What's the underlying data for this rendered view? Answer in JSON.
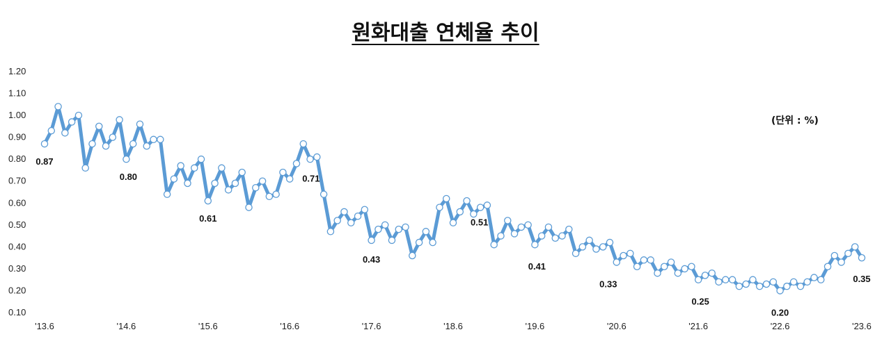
{
  "chart_data": {
    "type": "line",
    "title": "원화대출 연체율 추이",
    "unit_note": "(단위 : %)",
    "ylim": [
      0.1,
      1.2
    ],
    "y_ticks": [
      "0.10",
      "0.20",
      "0.30",
      "0.40",
      "0.50",
      "0.60",
      "0.70",
      "0.80",
      "0.90",
      "1.00",
      "1.10",
      "1.20"
    ],
    "x_tick_labels": [
      "'13.6",
      "'14.6",
      "'15.6",
      "'16.6",
      "'17.6",
      "'18.6",
      "'19.6",
      "'20.6",
      "'21.6",
      "'22.6",
      "'23.6"
    ],
    "line_color": "#5b9bd5",
    "marker_fill": "#ffffff",
    "series": [
      {
        "values": [
          0.87,
          0.93,
          1.04,
          0.92,
          0.97,
          1.0,
          0.76,
          0.87,
          0.95,
          0.86,
          0.9,
          0.98,
          0.8,
          0.87,
          0.96,
          0.86,
          0.89,
          0.89,
          0.64,
          0.71,
          0.77,
          0.69,
          0.76,
          0.8,
          0.61,
          0.69,
          0.76,
          0.66,
          0.69,
          0.74,
          0.58,
          0.67,
          0.7,
          0.63,
          0.64,
          0.74,
          0.71,
          0.78,
          0.87,
          0.8,
          0.81,
          0.64,
          0.47,
          0.52,
          0.56,
          0.51,
          0.54,
          0.57,
          0.43,
          0.48,
          0.5,
          0.43,
          0.48,
          0.49,
          0.36,
          0.42,
          0.47,
          0.42,
          0.58,
          0.62,
          0.51,
          0.56,
          0.61,
          0.55,
          0.58,
          0.59,
          0.41,
          0.45,
          0.52,
          0.46,
          0.49,
          0.5,
          0.41,
          0.45,
          0.49,
          0.44,
          0.45,
          0.48,
          0.37,
          0.4,
          0.43,
          0.39,
          0.4,
          0.42,
          0.33,
          0.36,
          0.37,
          0.31,
          0.34,
          0.34,
          0.28,
          0.31,
          0.33,
          0.28,
          0.3,
          0.31,
          0.25,
          0.27,
          0.28,
          0.24,
          0.25,
          0.25,
          0.22,
          0.23,
          0.25,
          0.22,
          0.23,
          0.24,
          0.2,
          0.22,
          0.24,
          0.22,
          0.24,
          0.26,
          0.25,
          0.31,
          0.36,
          0.33,
          0.37,
          0.4,
          0.35
        ]
      }
    ],
    "data_labels": [
      {
        "index": 0,
        "text": "0.87"
      },
      {
        "index": 12,
        "text": "0.80"
      },
      {
        "index": 24,
        "text": "0.61"
      },
      {
        "index": 36,
        "text": "0.71"
      },
      {
        "index": 48,
        "text": "0.43"
      },
      {
        "index": 60,
        "text": "0.51"
      },
      {
        "index": 72,
        "text": "0.41"
      },
      {
        "index": 84,
        "text": "0.33"
      },
      {
        "index": 96,
        "text": "0.25"
      },
      {
        "index": 108,
        "text": "0.20"
      },
      {
        "index": 120,
        "text": "0.35"
      }
    ]
  }
}
